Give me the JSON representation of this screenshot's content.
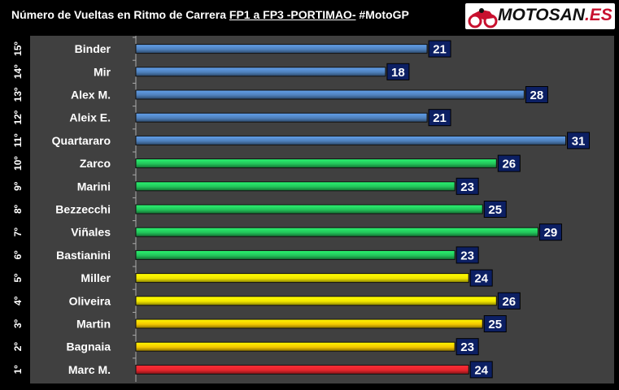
{
  "header": {
    "title_pre": "Número de Vueltas en Ritmo de Carrera ",
    "title_u": "FP1 a FP3 -PORTIMAO-",
    "title_post": " #MotoGP",
    "logo_text": "MOTOSAN",
    "logo_suffix": ".ES"
  },
  "chart_data": {
    "type": "bar",
    "orientation": "horizontal",
    "title": "Número de Vueltas en Ritmo de Carrera FP1 a FP3 -PORTIMAO- #MotoGP",
    "positions": [
      "15º",
      "14º",
      "13º",
      "12º",
      "11º",
      "10º",
      "9º",
      "8º",
      "7º",
      "6º",
      "5º",
      "4º",
      "3º",
      "2º",
      "1º"
    ],
    "categories": [
      "Binder",
      "Mir",
      "Alex M.",
      "Aleix E.",
      "Quartararo",
      "Zarco",
      "Marini",
      "Bezzecchi",
      "Viñales",
      "Bastianini",
      "Miller",
      "Oliveira",
      "Martin",
      "Bagnaia",
      "Marc M."
    ],
    "values": [
      21,
      18,
      28,
      21,
      31,
      26,
      23,
      25,
      29,
      23,
      24,
      26,
      25,
      23,
      24
    ],
    "colors": [
      "#4f81bd",
      "#4f81bd",
      "#4f81bd",
      "#4f81bd",
      "#4f81bd",
      "#22c45a",
      "#22c45a",
      "#22c45a",
      "#22c45a",
      "#22c45a",
      "#f2e600",
      "#f2e600",
      "#f5c800",
      "#f5c800",
      "#e8252c"
    ],
    "xlim": [
      0,
      40
    ],
    "grid": false,
    "data_labels": true
  }
}
